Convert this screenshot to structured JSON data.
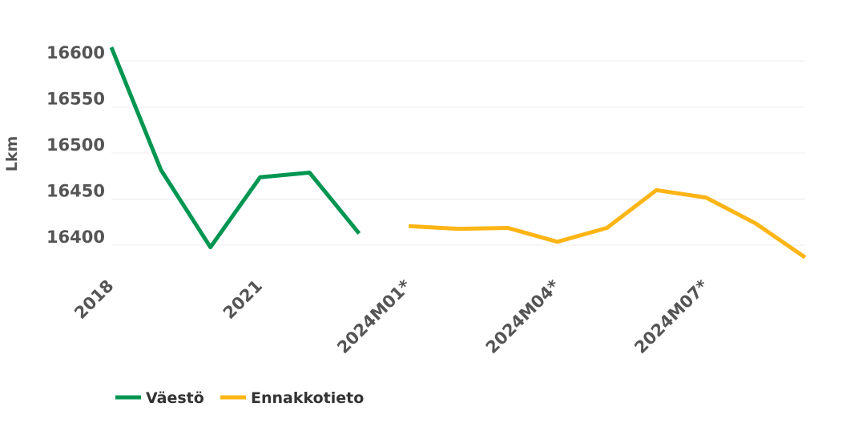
{
  "chart_data": {
    "type": "line",
    "title": "",
    "xlabel": "",
    "ylabel": "Lkm",
    "ylim": [
      16340,
      16620
    ],
    "y_ticks": [
      "16400",
      "16450",
      "16500",
      "16550",
      "16600"
    ],
    "categories": [
      "2018",
      "2019",
      "2020",
      "2021",
      "2022",
      "2023",
      "2024M01*",
      "2024M02*",
      "2024M03*",
      "2024M04*",
      "2024M05*",
      "2024M06*",
      "2024M07*",
      "2024M08*",
      "2024M09*"
    ],
    "x_tick_labels": [
      "2018",
      "2021",
      "2024M01*",
      "2024M04*",
      "2024M07*"
    ],
    "grid": true,
    "legend_position": "bottom-left",
    "series": [
      {
        "name": "Väestö",
        "color": "#009652",
        "values": [
          16606,
          16473,
          16389,
          16465,
          16470,
          16404,
          null,
          null,
          null,
          null,
          null,
          null,
          null,
          null,
          null
        ]
      },
      {
        "name": "Ennakkotieto",
        "color": "#FDB515",
        "values": [
          null,
          null,
          null,
          null,
          null,
          null,
          16412,
          16409,
          16410,
          16395,
          16410,
          16451,
          16443,
          16415,
          16378
        ]
      }
    ]
  }
}
